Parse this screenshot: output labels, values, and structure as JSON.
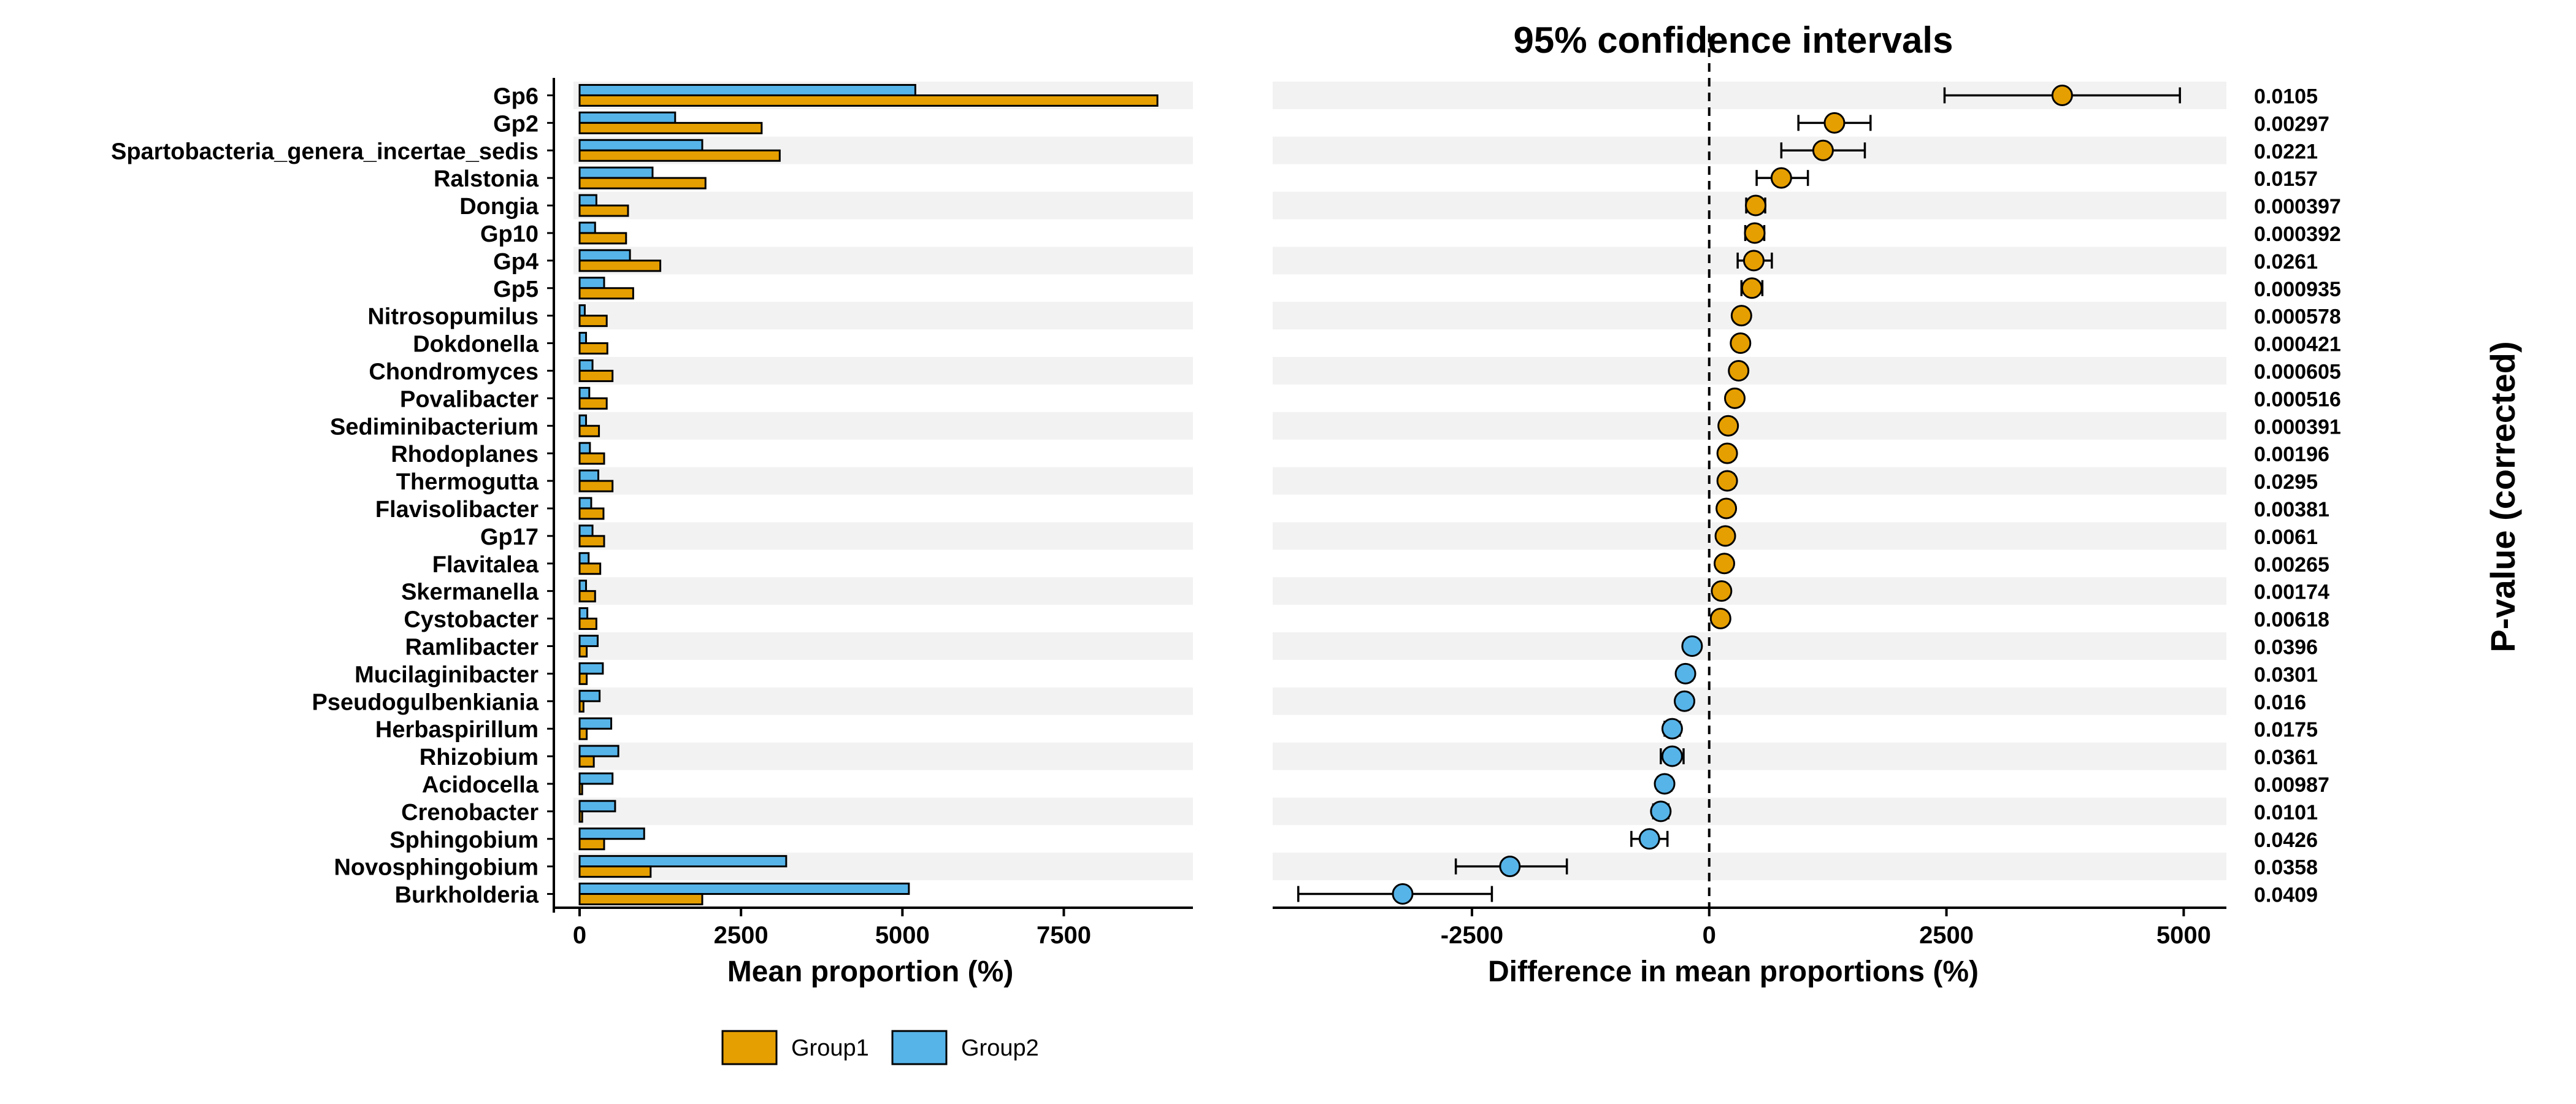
{
  "chart_data": [
    {
      "type": "bar",
      "xlabel": "Mean proportion (%)",
      "xlim": [
        0,
        9500
      ],
      "xticks": [
        0,
        2500,
        5000,
        7500
      ],
      "grid": false,
      "categories": [
        "Gp6",
        "Gp2",
        "Spartobacteria_genera_incertae_sedis",
        "Ralstonia",
        "Dongia",
        "Gp10",
        "Gp4",
        "Gp5",
        "Nitrosopumilus",
        "Dokdonella",
        "Chondromyces",
        "Povalibacter",
        "Sediminibacterium",
        "Rhodoplanes",
        "Thermogutta",
        "Flavisolibacter",
        "Gp17",
        "Flavitalea",
        "Skermanella",
        "Cystobacter",
        "Ramlibacter",
        "Mucilaginibacter",
        "Pseudogulbenkiania",
        "Herbaspirillum",
        "Rhizobium",
        "Acidocella",
        "Crenobacter",
        "Sphingobium",
        "Novosphingobium",
        "Burkholderia"
      ],
      "series": [
        {
          "name": "Group1",
          "color": "#E69F00",
          "values": [
            8950,
            2820,
            3100,
            1950,
            750,
            720,
            1250,
            830,
            420,
            430,
            510,
            420,
            300,
            380,
            510,
            370,
            380,
            320,
            240,
            260,
            110,
            110,
            60,
            110,
            220,
            40,
            40,
            380,
            1100,
            1900
          ]
        },
        {
          "name": "Group2",
          "color": "#56B4E9",
          "values": [
            5200,
            1480,
            1900,
            1130,
            260,
            240,
            780,
            380,
            80,
            100,
            200,
            150,
            100,
            160,
            290,
            180,
            200,
            140,
            100,
            120,
            280,
            360,
            310,
            490,
            600,
            510,
            550,
            1000,
            3200,
            5100
          ]
        }
      ]
    },
    {
      "type": "scatter",
      "title": "95% confidence intervals",
      "xlabel": "Difference in mean proportions (%)",
      "xlim": [
        -4600,
        5450
      ],
      "xticks": [
        -2500,
        0,
        2500,
        5000
      ],
      "reference_line": 0,
      "secondary_ylabel": "P-value (corrected)",
      "points": [
        {
          "diff": 3720,
          "lo": 2480,
          "hi": 4960,
          "group": "Group1",
          "p": "0.0105"
        },
        {
          "diff": 1320,
          "lo": 940,
          "hi": 1700,
          "group": "Group1",
          "p": "0.00297"
        },
        {
          "diff": 1200,
          "lo": 760,
          "hi": 1640,
          "group": "Group1",
          "p": "0.0221"
        },
        {
          "diff": 760,
          "lo": 500,
          "hi": 1040,
          "group": "Group1",
          "p": "0.0157"
        },
        {
          "diff": 490,
          "lo": 390,
          "hi": 590,
          "group": "Group1",
          "p": "0.000397"
        },
        {
          "diff": 480,
          "lo": 380,
          "hi": 580,
          "group": "Group1",
          "p": "0.000392"
        },
        {
          "diff": 470,
          "lo": 300,
          "hi": 660,
          "group": "Group1",
          "p": "0.0261"
        },
        {
          "diff": 450,
          "lo": 340,
          "hi": 560,
          "group": "Group1",
          "p": "0.000935"
        },
        {
          "diff": 340,
          "lo": 290,
          "hi": 390,
          "group": "Group1",
          "p": "0.000578"
        },
        {
          "diff": 330,
          "lo": 280,
          "hi": 380,
          "group": "Group1",
          "p": "0.000421"
        },
        {
          "diff": 310,
          "lo": 260,
          "hi": 360,
          "group": "Group1",
          "p": "0.000605"
        },
        {
          "diff": 270,
          "lo": 220,
          "hi": 320,
          "group": "Group1",
          "p": "0.000516"
        },
        {
          "diff": 200,
          "lo": 160,
          "hi": 240,
          "group": "Group1",
          "p": "0.000391"
        },
        {
          "diff": 190,
          "lo": 140,
          "hi": 240,
          "group": "Group1",
          "p": "0.00196"
        },
        {
          "diff": 190,
          "lo": 120,
          "hi": 260,
          "group": "Group1",
          "p": "0.0295"
        },
        {
          "diff": 180,
          "lo": 130,
          "hi": 230,
          "group": "Group1",
          "p": "0.00381"
        },
        {
          "diff": 170,
          "lo": 110,
          "hi": 230,
          "group": "Group1",
          "p": "0.0061"
        },
        {
          "diff": 160,
          "lo": 110,
          "hi": 210,
          "group": "Group1",
          "p": "0.00265"
        },
        {
          "diff": 130,
          "lo": 70,
          "hi": 190,
          "group": "Group1",
          "p": "0.00174"
        },
        {
          "diff": 120,
          "lo": 60,
          "hi": 180,
          "group": "Group1",
          "p": "0.00618"
        },
        {
          "diff": -180,
          "lo": -240,
          "hi": -120,
          "group": "Group2",
          "p": "0.0396"
        },
        {
          "diff": -250,
          "lo": -320,
          "hi": -180,
          "group": "Group2",
          "p": "0.0301"
        },
        {
          "diff": -260,
          "lo": -320,
          "hi": -200,
          "group": "Group2",
          "p": "0.016"
        },
        {
          "diff": -390,
          "lo": -470,
          "hi": -310,
          "group": "Group2",
          "p": "0.0175"
        },
        {
          "diff": -390,
          "lo": -510,
          "hi": -270,
          "group": "Group2",
          "p": "0.0361"
        },
        {
          "diff": -470,
          "lo": -540,
          "hi": -400,
          "group": "Group2",
          "p": "0.00987"
        },
        {
          "diff": -510,
          "lo": -590,
          "hi": -430,
          "group": "Group2",
          "p": "0.0101"
        },
        {
          "diff": -630,
          "lo": -820,
          "hi": -440,
          "group": "Group2",
          "p": "0.0426"
        },
        {
          "diff": -2100,
          "lo": -2670,
          "hi": -1500,
          "group": "Group2",
          "p": "0.0358"
        },
        {
          "diff": -3230,
          "lo": -4330,
          "hi": -2290,
          "group": "Group2",
          "p": "0.0409"
        }
      ]
    }
  ],
  "legend": {
    "position": "bottom-left",
    "items": [
      {
        "label": "Group1",
        "color": "#E69F00"
      },
      {
        "label": "Group2",
        "color": "#56B4E9"
      }
    ]
  },
  "colors": {
    "band": "#F2F2F2",
    "axis": "#000000"
  }
}
